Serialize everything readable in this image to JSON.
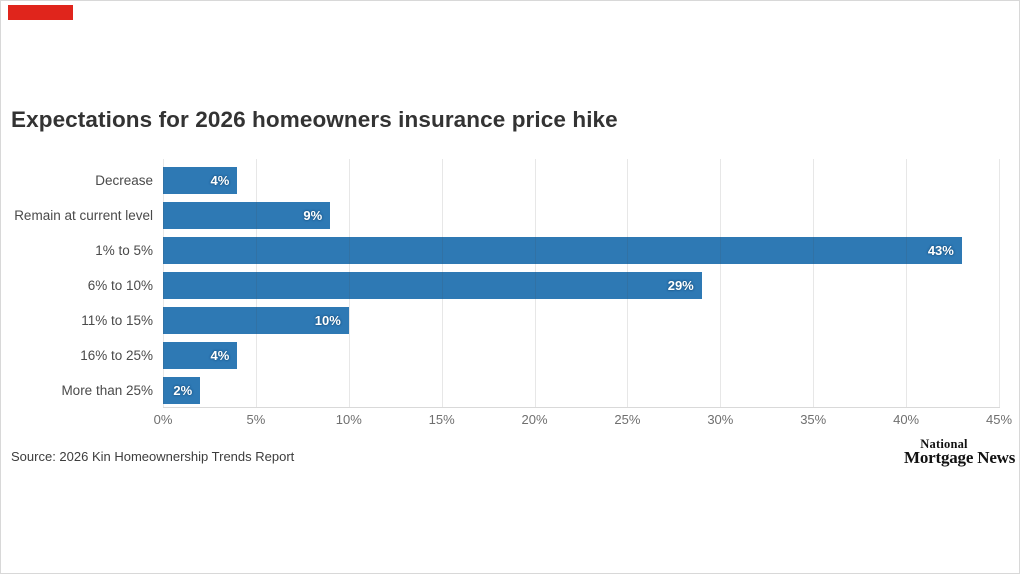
{
  "header": {
    "marker_color": "#e0251c"
  },
  "footer": {
    "source": "Source: 2026 Kin Homeownership Trends Report",
    "logo_line1": "National",
    "logo_line2": "Mortgage News"
  },
  "chart_data": {
    "type": "bar",
    "orientation": "horizontal",
    "title": "Expectations for 2026 homeowners insurance price hike",
    "categories": [
      "Decrease",
      "Remain at current level",
      "1% to 5%",
      "6% to 10%",
      "11% to 15%",
      "16% to 25%",
      "More than 25%"
    ],
    "values": [
      4,
      9,
      43,
      29,
      10,
      4,
      2
    ],
    "data_labels": [
      "4%",
      "9%",
      "43%",
      "29%",
      "10%",
      "4%",
      "2%"
    ],
    "x_tick_labels": [
      "0%",
      "5%",
      "10%",
      "15%",
      "20%",
      "25%",
      "30%",
      "35%",
      "40%",
      "45%"
    ],
    "xlim": [
      0,
      45
    ],
    "xlabel": "",
    "ylabel": "",
    "grid": true,
    "legend": false,
    "bar_color": "#2e79b4"
  }
}
